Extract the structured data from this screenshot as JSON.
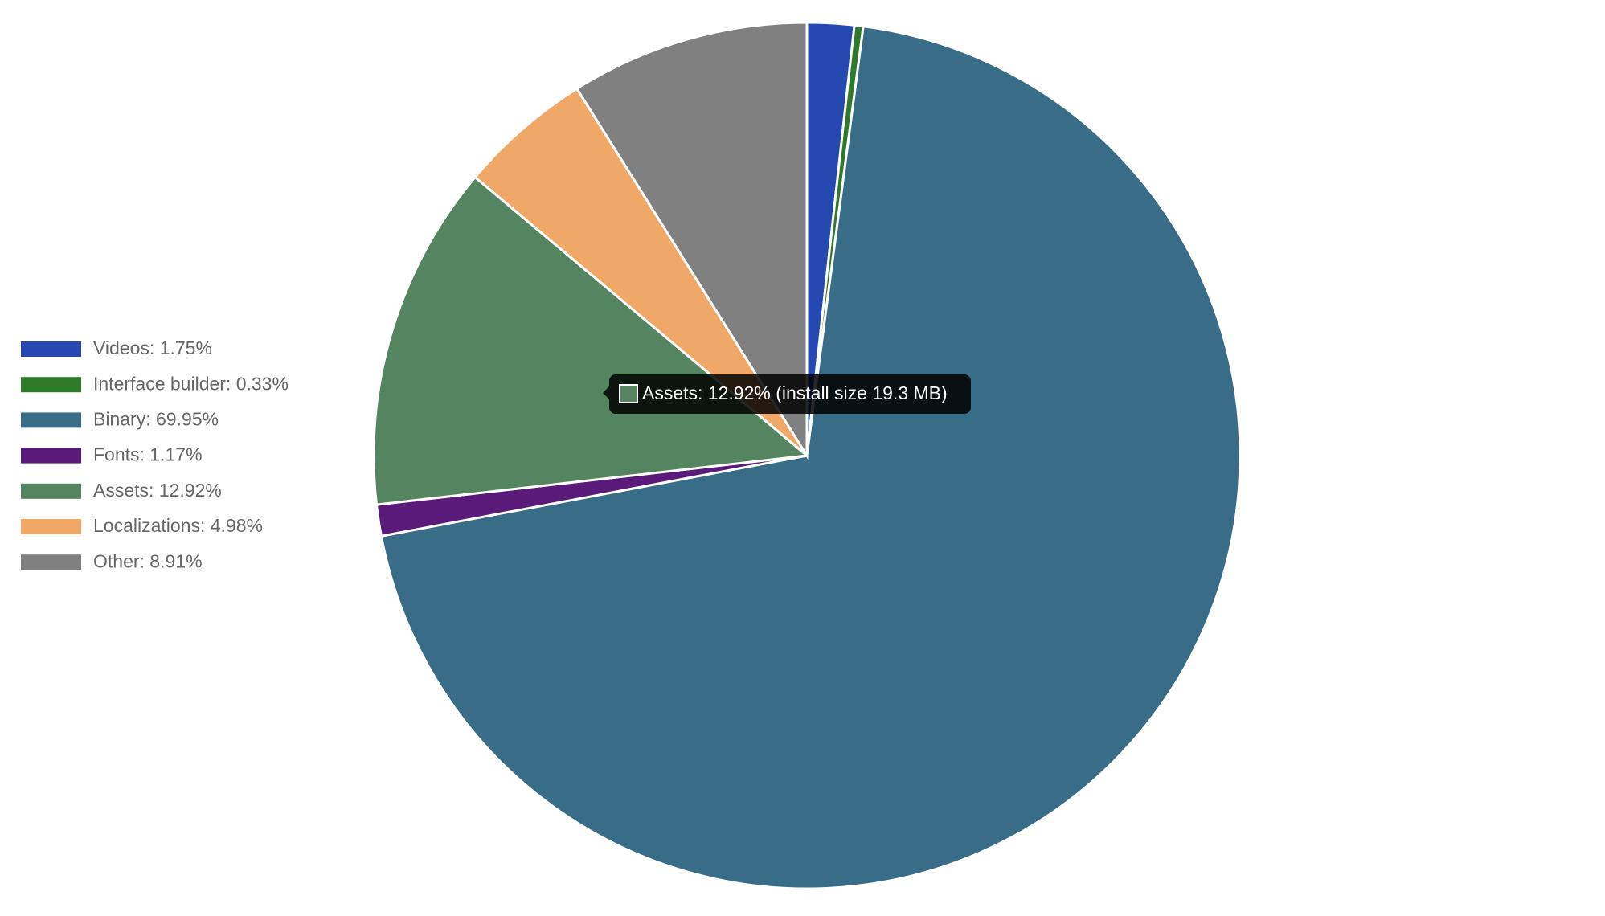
{
  "chart_data": {
    "type": "pie",
    "labels": [
      "Videos: 1.75%",
      "Interface builder: 0.33%",
      "Binary: 69.95%",
      "Fonts: 1.17%",
      "Assets: 12.92%",
      "Localizations: 4.98%",
      "Other: 8.91%"
    ],
    "values": [
      1.75,
      0.33,
      69.95,
      1.17,
      12.92,
      4.98,
      8.91
    ],
    "colors": [
      "#2549b1",
      "#2f7a2a",
      "#386c87",
      "#5a1a7a",
      "#558560",
      "#f0a868",
      "#808080"
    ],
    "legend": "left",
    "tooltip": {
      "category_index": 4,
      "text": "Assets: 12.92% (install size 19.3 MB)"
    }
  }
}
